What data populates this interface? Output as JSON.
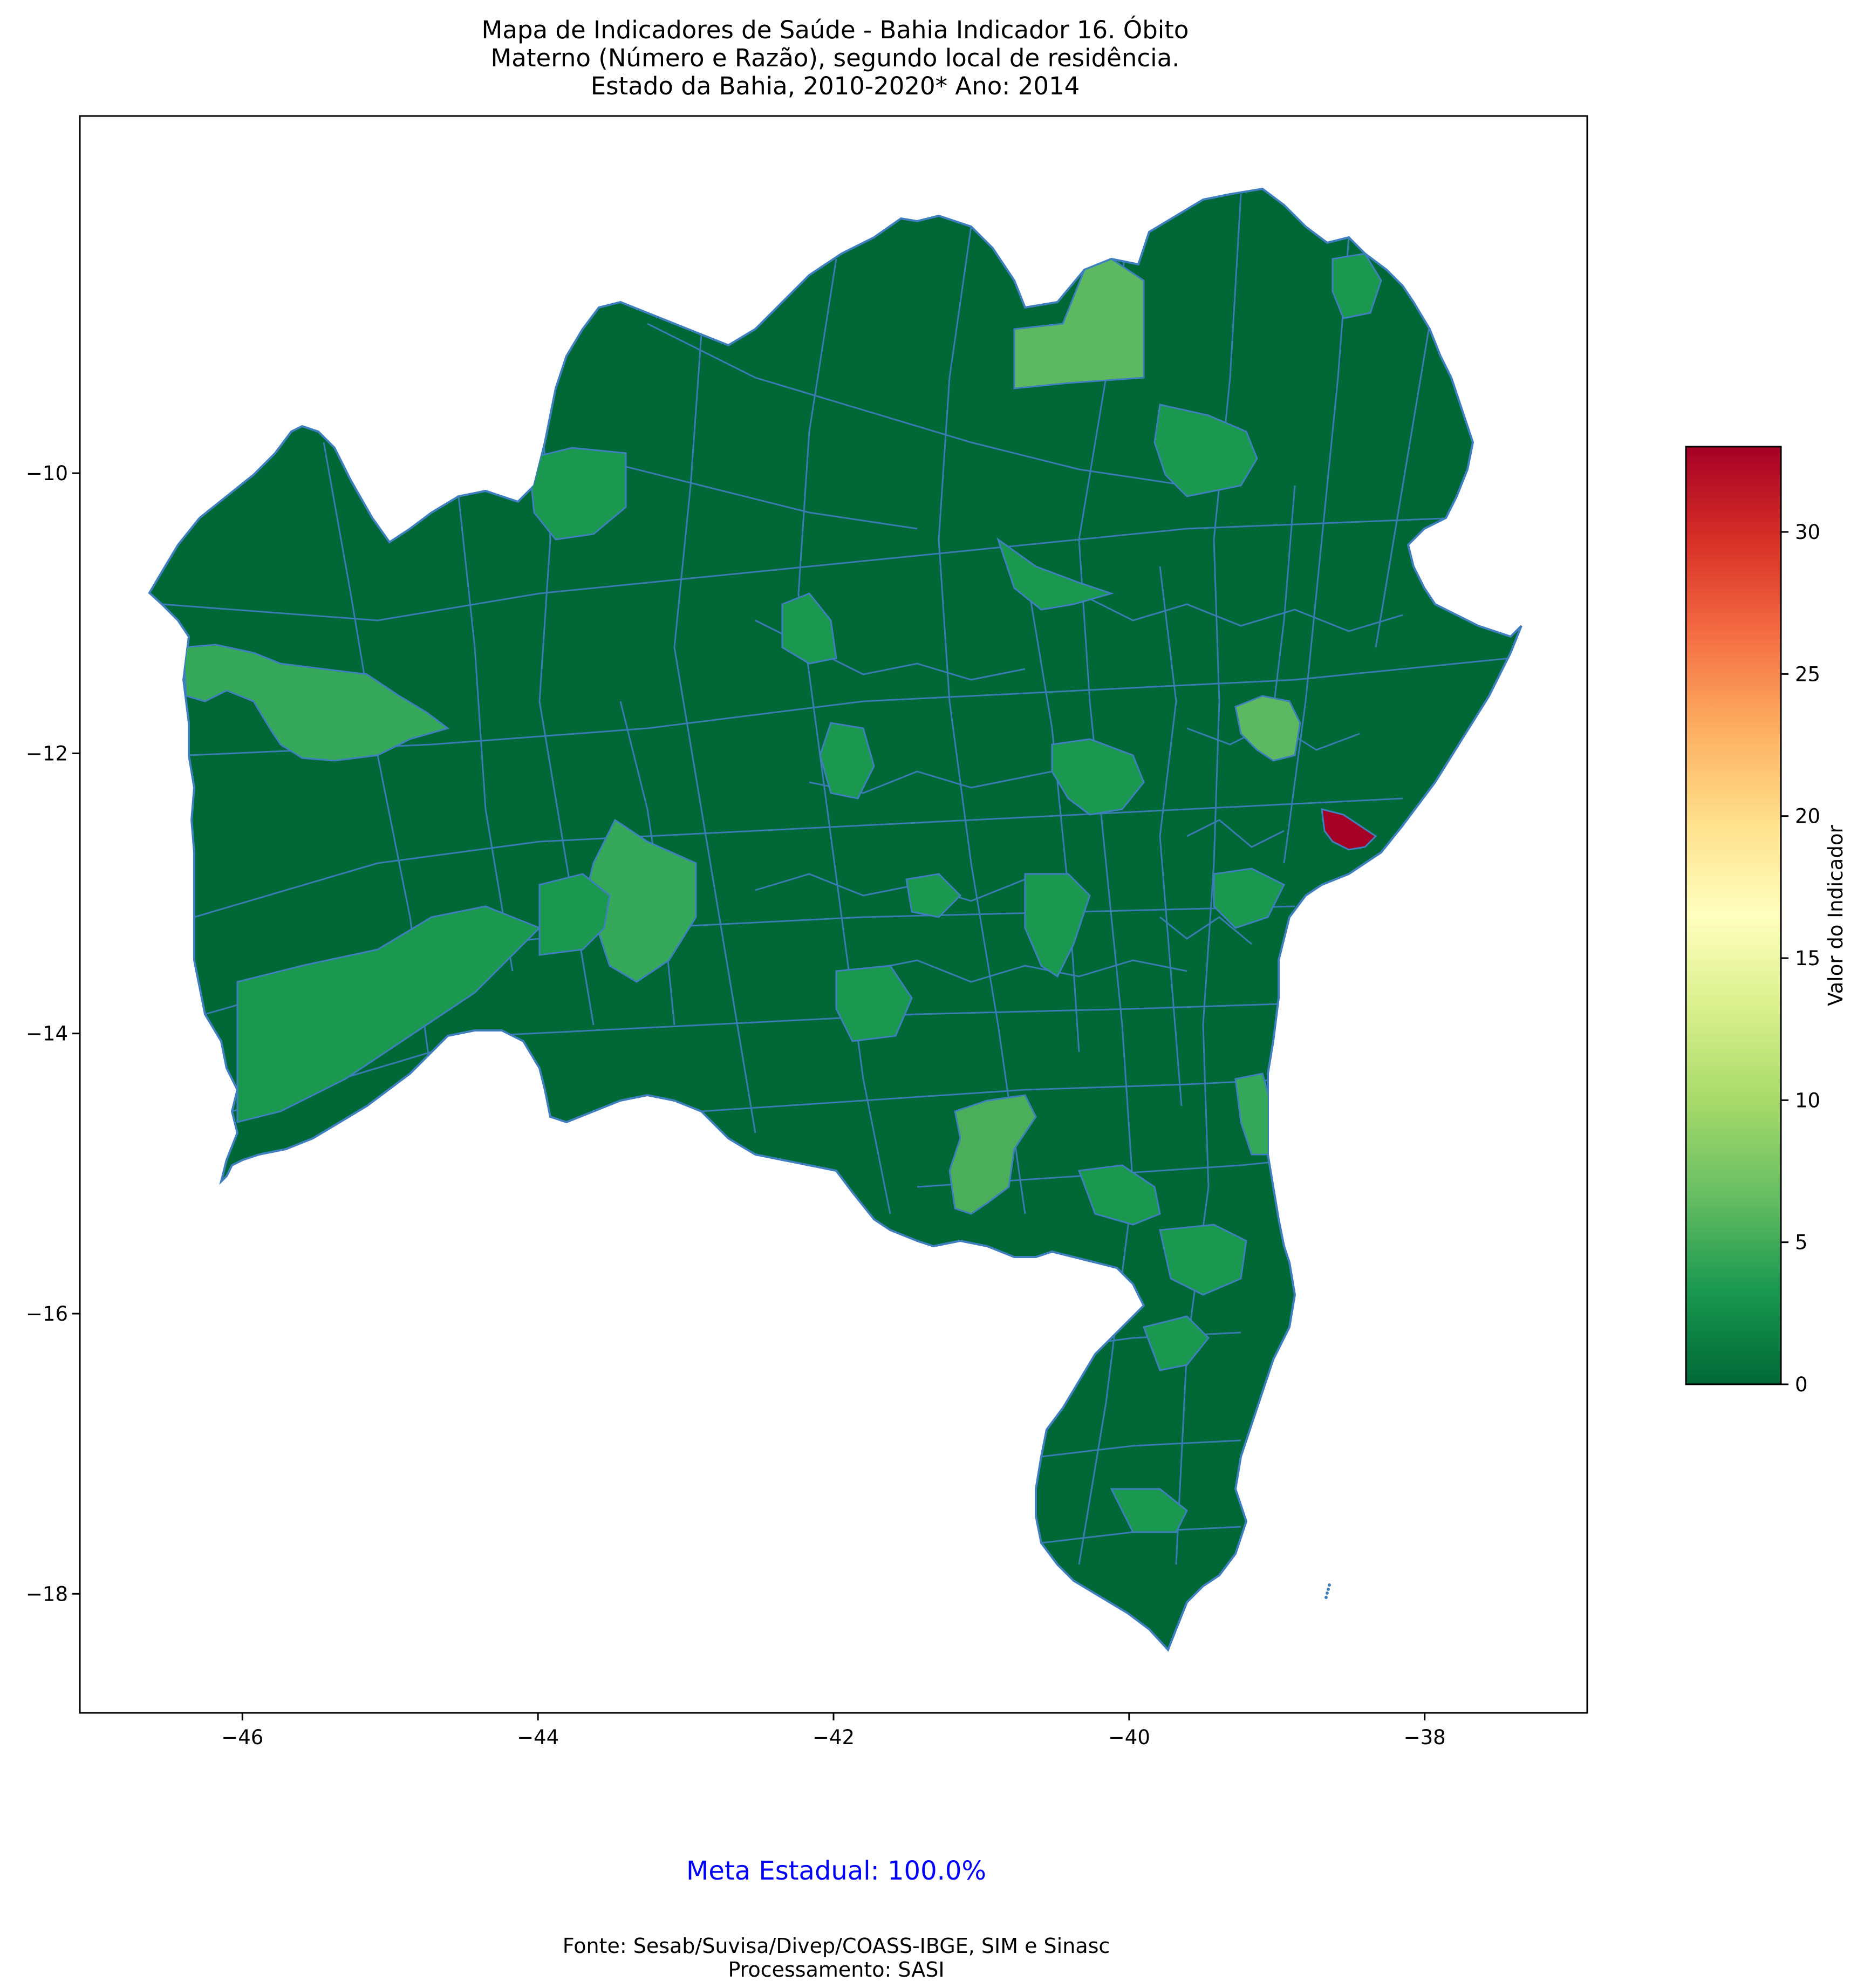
{
  "title": {
    "line1": "Mapa de Indicadores de Saúde - Bahia   Indicador 16. Óbito",
    "line2": "Materno (Número e Razão), segundo local de residência.",
    "line3": "Estado da Bahia, 2010-2020*   Ano: 2014"
  },
  "chart_data": {
    "type": "choropleth",
    "region": "Bahia",
    "xlim": [
      -47.1,
      -36.9
    ],
    "ylim": [
      -18.85,
      -7.45
    ],
    "x_ticks": [
      -46,
      -44,
      -42,
      -40,
      -38
    ],
    "y_ticks": [
      -10,
      -12,
      -14,
      -16,
      -18
    ],
    "x_tick_labels": [
      "−46",
      "−44",
      "−42",
      "−40",
      "−38"
    ],
    "y_tick_labels": [
      "−10",
      "−12",
      "−14",
      "−16",
      "−18"
    ],
    "colormap": "RdYlGn_r",
    "colorbar": {
      "label": "Valor do Indicador",
      "min": 0,
      "max": 33,
      "ticks": [
        0,
        5,
        10,
        15,
        20,
        25,
        30
      ],
      "tick_labels": [
        "0",
        "5",
        "10",
        "15",
        "20",
        "25",
        "30"
      ]
    },
    "highlighted_regions": [
      {
        "approx_lon": -38.5,
        "approx_lat": -12.95,
        "value": 33
      },
      {
        "approx_lon": -40.5,
        "approx_lat": -9.7,
        "value": 6
      },
      {
        "approx_lon": -45.1,
        "approx_lat": -12.1,
        "value": 4
      },
      {
        "approx_lon": -40.9,
        "approx_lat": -15.1,
        "value": 5
      },
      {
        "approx_lon": -39.25,
        "approx_lat": -12.2,
        "value": 6
      }
    ],
    "base_value": 0,
    "colors": {
      "low": "#006837",
      "mid_low": "#1a9850",
      "light_green": "#5db961",
      "high": "#a50026",
      "border": "#3f7fbf"
    }
  },
  "footer": {
    "meta": "Meta Estadual: 100.0%",
    "fonte_line1": "Fonte: Sesab/Suvisa/Divep/COASS-IBGE, SIM e Sinasc",
    "fonte_line2": "Processamento: SASI"
  }
}
